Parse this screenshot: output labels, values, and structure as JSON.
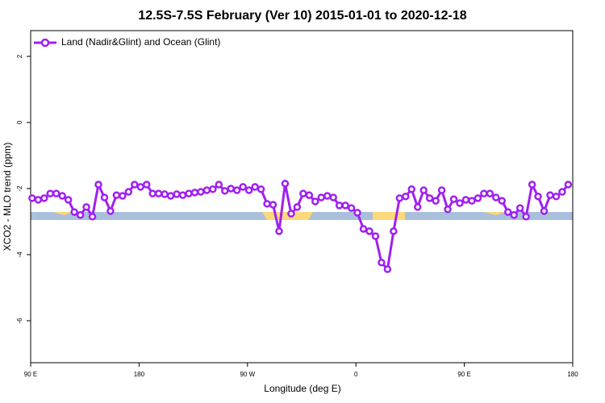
{
  "chart_data": {
    "type": "line",
    "title": "12.5S-7.5S February (Ver 10)   2015-01-01 to 2020-12-18",
    "x_label": "Longitude (deg E)",
    "y_label": "XCO2 - MLO trend (ppm)",
    "x": [
      91.25,
      96.25,
      101.25,
      106.25,
      111.25,
      116.25,
      121.25,
      126.25,
      131.25,
      136.25,
      141.25,
      146.25,
      151.25,
      156.25,
      161.25,
      166.25,
      171.25,
      176.25,
      181.25,
      186.25,
      191.25,
      196.25,
      201.25,
      206.25,
      211.25,
      216.25,
      221.25,
      226.25,
      231.25,
      236.25,
      241.25,
      246.25,
      251.25,
      256.25,
      261.25,
      266.25,
      271.25,
      276.25,
      281.25,
      286.25,
      291.25,
      296.25,
      301.25,
      306.25,
      311.25,
      316.25,
      321.25,
      326.25,
      331.25,
      336.25,
      341.25,
      346.25,
      351.25,
      356.25,
      361.25,
      366.25,
      371.25,
      376.25,
      381.25,
      386.25,
      391.25,
      396.25,
      401.25,
      406.25,
      411.25,
      416.25,
      421.25,
      426.25,
      431.25,
      436.25,
      441.25,
      446.25,
      451.25,
      456.25,
      461.25,
      466.25,
      471.25,
      476.25,
      481.25,
      486.25,
      491.25,
      496.25,
      501.25,
      506.25,
      511.25,
      516.25,
      521.25,
      526.25,
      531.25,
      536.25
    ],
    "series": [
      {
        "name": "Land (Nadir&Glint) and Ocean (Glint)",
        "color": "#a020f0",
        "values": [
          -2.29,
          -2.34,
          -2.29,
          -2.15,
          -2.15,
          -2.22,
          -2.34,
          -2.71,
          -2.8,
          -2.56,
          -2.85,
          -1.88,
          -2.27,
          -2.68,
          -2.2,
          -2.22,
          -2.1,
          -1.88,
          -1.95,
          -1.88,
          -2.15,
          -2.15,
          -2.17,
          -2.22,
          -2.17,
          -2.2,
          -2.15,
          -2.12,
          -2.1,
          -2.05,
          -2.02,
          -1.88,
          -2.07,
          -2.0,
          -2.05,
          -1.95,
          -2.05,
          -1.95,
          -2.02,
          -2.46,
          -2.49,
          -3.29,
          -1.85,
          -2.76,
          -2.56,
          -2.15,
          -2.2,
          -2.39,
          -2.27,
          -2.22,
          -2.27,
          -2.51,
          -2.51,
          -2.59,
          -2.73,
          -3.22,
          -3.29,
          -3.44,
          -4.24,
          -4.44,
          -3.29,
          -2.29,
          -2.24,
          -2.02,
          -2.56,
          -2.05,
          -2.29,
          -2.37,
          -2.05,
          -2.63,
          -2.32,
          -2.44,
          -2.34,
          -2.37,
          -2.29,
          -2.15,
          -2.15,
          -2.27,
          -2.37,
          -2.71,
          -2.8,
          -2.59,
          -2.85,
          -1.88,
          -2.24,
          -2.68,
          -2.2,
          -2.24,
          -2.1,
          -1.88
        ]
      }
    ],
    "xlim": [
      90,
      540
    ],
    "xticks": [
      {
        "value": 90,
        "label": "90 E"
      },
      180,
      {
        "value": 270,
        "label": "90 W"
      },
      {
        "value": 360,
        "label": "0"
      },
      {
        "value": 450,
        "label": "90 E"
      },
      {
        "value": 540,
        "label": "180"
      }
    ],
    "ylim": [
      -7.27,
      2.78
    ],
    "yticks": [
      2,
      0,
      -2,
      -4,
      -6
    ],
    "legend": "top-left"
  }
}
